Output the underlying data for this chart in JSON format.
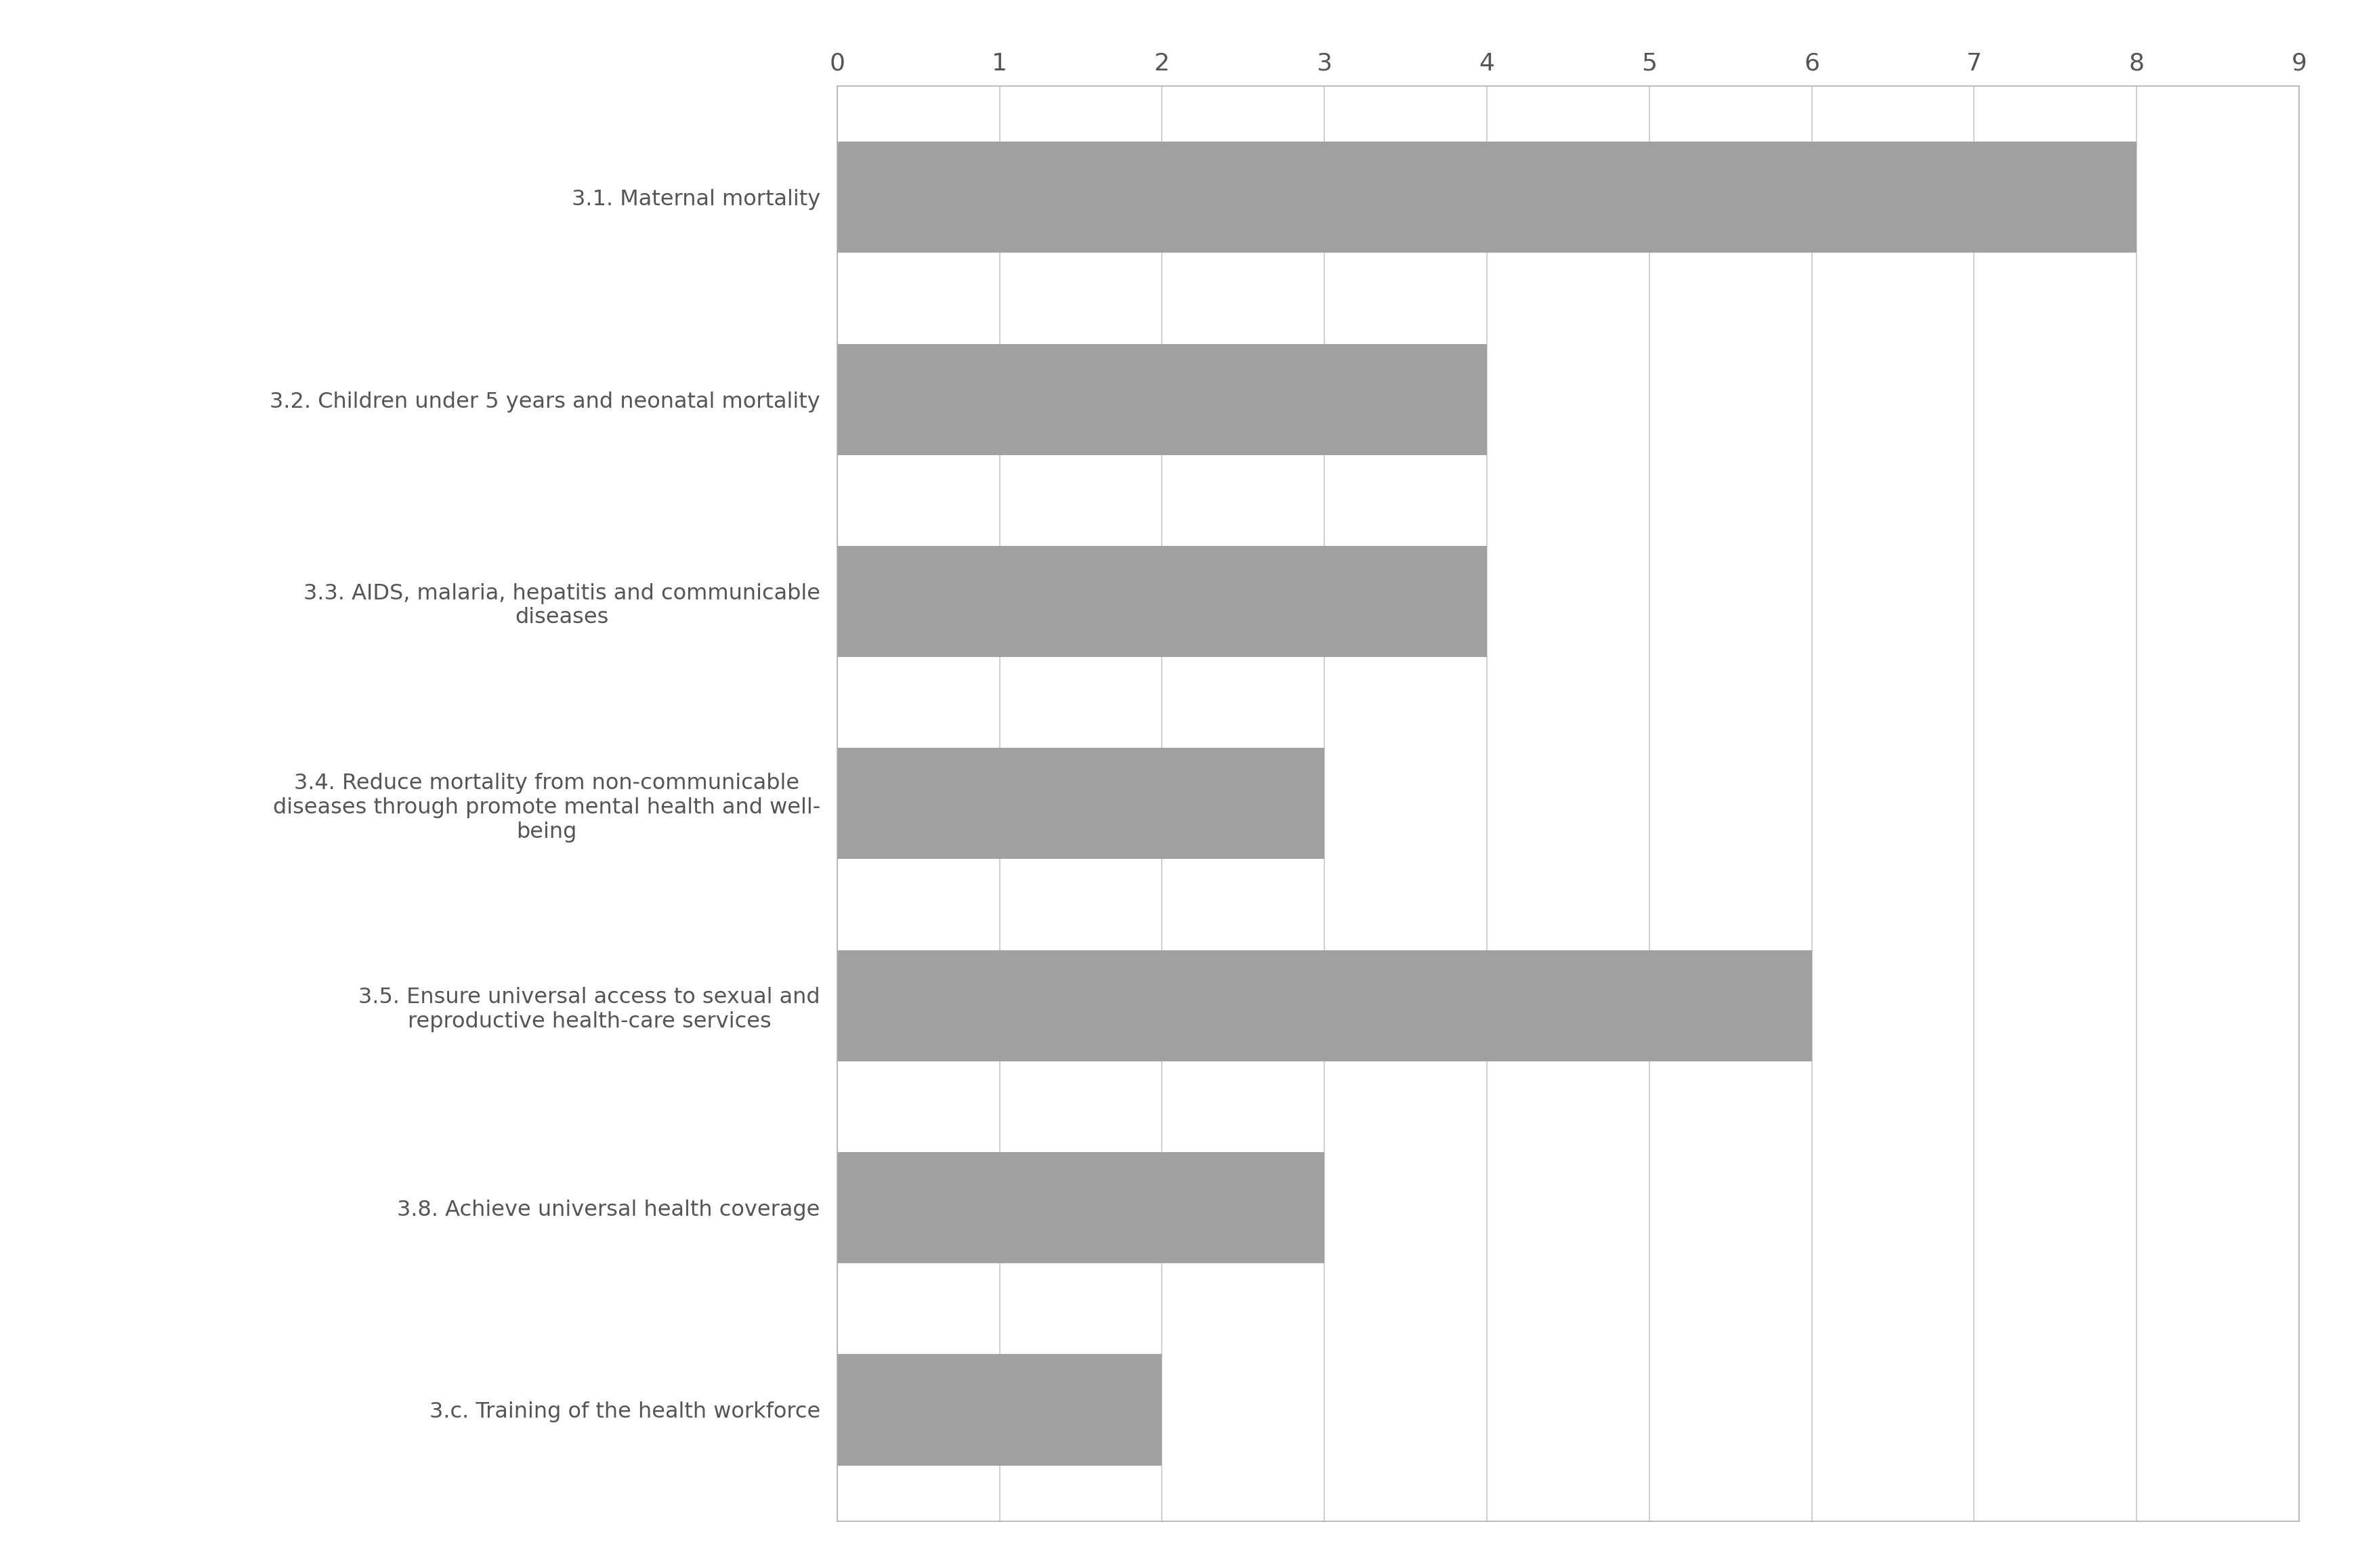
{
  "categories": [
    "3.c. Training of the health workforce",
    "3.8. Achieve universal health coverage",
    "3.5. Ensure universal access to sexual and\nreproductive health-care services",
    "3.4. Reduce mortality from non-communicable\ndiseases through promote mental health and well-\nbeing",
    "3.3. AIDS, malaria, hepatitis and communicable\ndiseases",
    "3.2. Children under 5 years and neonatal mortality",
    "3.1. Maternal mortality"
  ],
  "values": [
    2,
    3,
    6,
    3,
    4,
    4,
    8
  ],
  "bar_color": "#a0a0a0",
  "bar_edge_color": "#a0a0a0",
  "xlim": [
    0,
    9
  ],
  "xticks": [
    0,
    1,
    2,
    3,
    4,
    5,
    6,
    7,
    8,
    9
  ],
  "background_color": "#ffffff",
  "grid_color": "#c8c8c8",
  "tick_fontsize": 26,
  "label_fontsize": 23,
  "bar_height": 0.55,
  "spine_color": "#b0b0b0",
  "text_color": "#555555"
}
